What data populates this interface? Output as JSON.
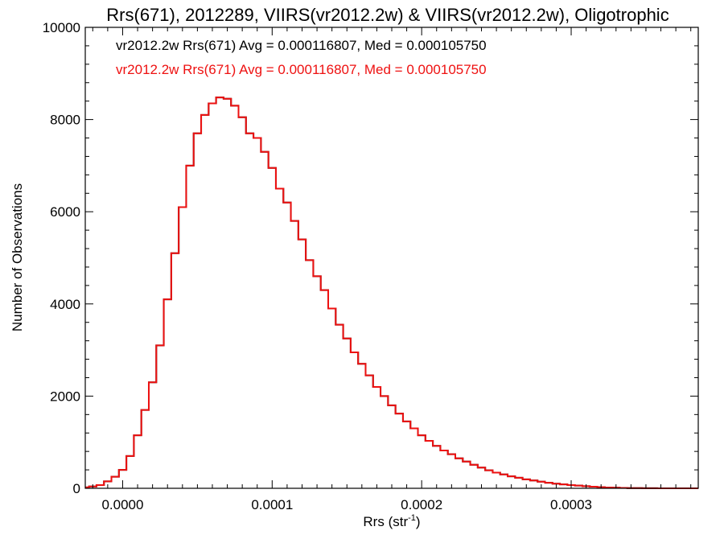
{
  "chart_data": {
    "type": "histogram",
    "title": "Rrs(671), 2012289, VIIRS(vr2012.2w) & VIIRS(vr2012.2w), Oligotrophic",
    "xlabel_main": "Rrs (str",
    "xlabel_sup": "-1",
    "xlabel_close": ")",
    "ylabel": "Number of Observations",
    "xlim": [
      -2.5e-05,
      0.000385
    ],
    "ylim": [
      0,
      10000
    ],
    "x_ticks": [
      0.0,
      0.0001,
      0.0002,
      0.0003
    ],
    "x_tick_labels": [
      "0.0000",
      "0.0001",
      "0.0002",
      "0.0003"
    ],
    "y_ticks": [
      0,
      2000,
      4000,
      6000,
      8000,
      10000
    ],
    "y_tick_labels": [
      "0",
      "2000",
      "4000",
      "6000",
      "8000",
      "10000"
    ],
    "grid": false,
    "legend_placement": "top-left",
    "series": [
      {
        "name": "vr2012.2w Rrs(671) Avg = 0.000116807, Med = 0.000105750",
        "color": "#000000",
        "x": [
          -2.5e-05,
          -2e-05,
          -1.5e-05,
          -1e-05,
          -5e-06,
          0.0,
          5e-06,
          1e-05,
          1.5e-05,
          2e-05,
          2.5e-05,
          3e-05,
          3.5e-05,
          4e-05,
          4.5e-05,
          5e-05,
          5.5e-05,
          6e-05,
          6.5e-05,
          7e-05,
          7.5e-05,
          8e-05,
          8.5e-05,
          9e-05,
          9.5e-05,
          0.0001,
          0.000105,
          0.00011,
          0.000115,
          0.00012,
          0.000125,
          0.00013,
          0.000135,
          0.00014,
          0.000145,
          0.00015,
          0.000155,
          0.00016,
          0.000165,
          0.00017,
          0.000175,
          0.00018,
          0.000185,
          0.00019,
          0.000195,
          0.0002,
          0.000205,
          0.00021,
          0.000215,
          0.00022,
          0.000225,
          0.00023,
          0.000235,
          0.00024,
          0.000245,
          0.00025,
          0.000255,
          0.00026,
          0.000265,
          0.00027,
          0.000275,
          0.00028,
          0.000285,
          0.00029,
          0.000295,
          0.0003,
          0.000305,
          0.00031,
          0.000315,
          0.00032,
          0.000325,
          0.00033,
          0.000335,
          0.00034,
          0.000345,
          0.00035,
          0.000355,
          0.00036,
          0.000365,
          0.00037,
          0.000375,
          0.00038,
          0.000385
        ],
        "y": [
          20,
          40,
          70,
          150,
          250,
          400,
          700,
          1150,
          1700,
          2300,
          3100,
          4100,
          5100,
          6100,
          7000,
          7700,
          8100,
          8350,
          8480,
          8450,
          8300,
          8050,
          7700,
          7600,
          7300,
          6950,
          6500,
          6200,
          5800,
          5400,
          4950,
          4600,
          4300,
          3900,
          3550,
          3250,
          2950,
          2700,
          2450,
          2200,
          2000,
          1800,
          1620,
          1450,
          1300,
          1150,
          1030,
          920,
          820,
          740,
          650,
          580,
          510,
          450,
          390,
          340,
          300,
          260,
          230,
          195,
          170,
          145,
          120,
          100,
          85,
          70,
          58,
          45,
          35,
          25,
          18,
          12,
          8,
          5,
          4,
          3,
          2,
          1,
          1,
          1,
          0,
          0,
          0
        ]
      },
      {
        "name": "vr2012.2w Rrs(671) Avg = 0.000116807, Med = 0.000105750",
        "color": "#ee1111",
        "x": [
          -2.5e-05,
          -2e-05,
          -1.5e-05,
          -1e-05,
          -5e-06,
          0.0,
          5e-06,
          1e-05,
          1.5e-05,
          2e-05,
          2.5e-05,
          3e-05,
          3.5e-05,
          4e-05,
          4.5e-05,
          5e-05,
          5.5e-05,
          6e-05,
          6.5e-05,
          7e-05,
          7.5e-05,
          8e-05,
          8.5e-05,
          9e-05,
          9.5e-05,
          0.0001,
          0.000105,
          0.00011,
          0.000115,
          0.00012,
          0.000125,
          0.00013,
          0.000135,
          0.00014,
          0.000145,
          0.00015,
          0.000155,
          0.00016,
          0.000165,
          0.00017,
          0.000175,
          0.00018,
          0.000185,
          0.00019,
          0.000195,
          0.0002,
          0.000205,
          0.00021,
          0.000215,
          0.00022,
          0.000225,
          0.00023,
          0.000235,
          0.00024,
          0.000245,
          0.00025,
          0.000255,
          0.00026,
          0.000265,
          0.00027,
          0.000275,
          0.00028,
          0.000285,
          0.00029,
          0.000295,
          0.0003,
          0.000305,
          0.00031,
          0.000315,
          0.00032,
          0.000325,
          0.00033,
          0.000335,
          0.00034,
          0.000345,
          0.00035,
          0.000355,
          0.00036,
          0.000365,
          0.00037,
          0.000375,
          0.00038,
          0.000385
        ],
        "y": [
          20,
          40,
          70,
          150,
          250,
          400,
          700,
          1150,
          1700,
          2300,
          3100,
          4100,
          5100,
          6100,
          7000,
          7700,
          8100,
          8350,
          8480,
          8450,
          8300,
          8050,
          7700,
          7600,
          7300,
          6950,
          6500,
          6200,
          5800,
          5400,
          4950,
          4600,
          4300,
          3900,
          3550,
          3250,
          2950,
          2700,
          2450,
          2200,
          2000,
          1800,
          1620,
          1450,
          1300,
          1150,
          1030,
          920,
          820,
          740,
          650,
          580,
          510,
          450,
          390,
          340,
          300,
          260,
          230,
          195,
          170,
          145,
          120,
          100,
          85,
          70,
          58,
          45,
          35,
          25,
          18,
          12,
          8,
          5,
          4,
          3,
          2,
          1,
          1,
          1,
          0,
          0,
          0
        ]
      }
    ]
  }
}
